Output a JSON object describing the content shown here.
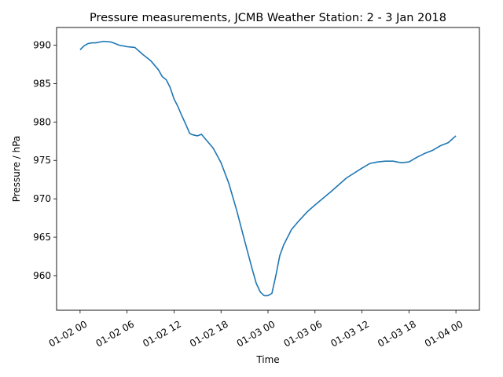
{
  "chart_data": {
    "type": "line",
    "title": "Pressure measurements, JCMB Weather Station: 2 - 3 Jan 2018",
    "xlabel": "Time",
    "ylabel": "Pressure / hPa",
    "grid": false,
    "x_ticks": [
      "01-02 00",
      "01-02 06",
      "01-02 12",
      "01-02 18",
      "01-03 00",
      "01-03 06",
      "01-03 12",
      "01-03 18",
      "01-04 00"
    ],
    "y_ticks": [
      "960",
      "965",
      "970",
      "975",
      "980",
      "985",
      "990"
    ],
    "xlim": [
      "2018-01-01 21:00",
      "2018-01-04 03:00"
    ],
    "ylim": [
      955.5,
      992.3
    ],
    "series": [
      {
        "color": "#1f77b4",
        "x": [
          "2018-01-02 00:00",
          "2018-01-02 00:30",
          "2018-01-02 01:00",
          "2018-01-02 01:30",
          "2018-01-02 02:00",
          "2018-01-02 03:00",
          "2018-01-02 04:00",
          "2018-01-02 05:00",
          "2018-01-02 06:00",
          "2018-01-02 07:00",
          "2018-01-02 08:00",
          "2018-01-02 09:00",
          "2018-01-02 09:30",
          "2018-01-02 10:00",
          "2018-01-02 10:30",
          "2018-01-02 11:00",
          "2018-01-02 11:30",
          "2018-01-02 12:00",
          "2018-01-02 12:30",
          "2018-01-02 13:00",
          "2018-01-02 13:30",
          "2018-01-02 14:00",
          "2018-01-02 14:30",
          "2018-01-02 15:00",
          "2018-01-02 15:30",
          "2018-01-02 16:00",
          "2018-01-02 16:30",
          "2018-01-02 17:00",
          "2018-01-02 18:00",
          "2018-01-02 19:00",
          "2018-01-02 20:00",
          "2018-01-02 21:00",
          "2018-01-02 22:00",
          "2018-01-02 22:30",
          "2018-01-02 23:00",
          "2018-01-02 23:30",
          "2018-01-03 00:00",
          "2018-01-03 00:30",
          "2018-01-03 01:00",
          "2018-01-03 01:30",
          "2018-01-03 02:00",
          "2018-01-03 03:00",
          "2018-01-03 04:00",
          "2018-01-03 05:00",
          "2018-01-03 06:00",
          "2018-01-03 08:00",
          "2018-01-03 10:00",
          "2018-01-03 12:00",
          "2018-01-03 13:00",
          "2018-01-03 14:00",
          "2018-01-03 15:00",
          "2018-01-03 16:00",
          "2018-01-03 17:00",
          "2018-01-03 18:00",
          "2018-01-03 19:00",
          "2018-01-03 20:00",
          "2018-01-03 21:00",
          "2018-01-03 22:00",
          "2018-01-03 23:00",
          "2018-01-04 00:00"
        ],
        "y": [
          989.4,
          989.9,
          990.2,
          990.3,
          990.3,
          990.5,
          990.4,
          990.0,
          989.8,
          989.7,
          988.8,
          988.0,
          987.4,
          986.8,
          985.9,
          985.5,
          984.5,
          983.0,
          982.0,
          980.8,
          979.7,
          978.5,
          978.3,
          978.2,
          978.4,
          977.8,
          977.2,
          976.6,
          974.7,
          972.0,
          968.5,
          964.6,
          960.8,
          959.0,
          957.9,
          957.4,
          957.4,
          957.7,
          960.0,
          962.6,
          964.0,
          966.0,
          967.2,
          968.3,
          969.2,
          970.9,
          972.7,
          974.0,
          974.6,
          974.8,
          974.9,
          974.9,
          974.7,
          974.8,
          975.4,
          975.9,
          976.3,
          976.9,
          977.3,
          978.2
        ]
      }
    ]
  }
}
